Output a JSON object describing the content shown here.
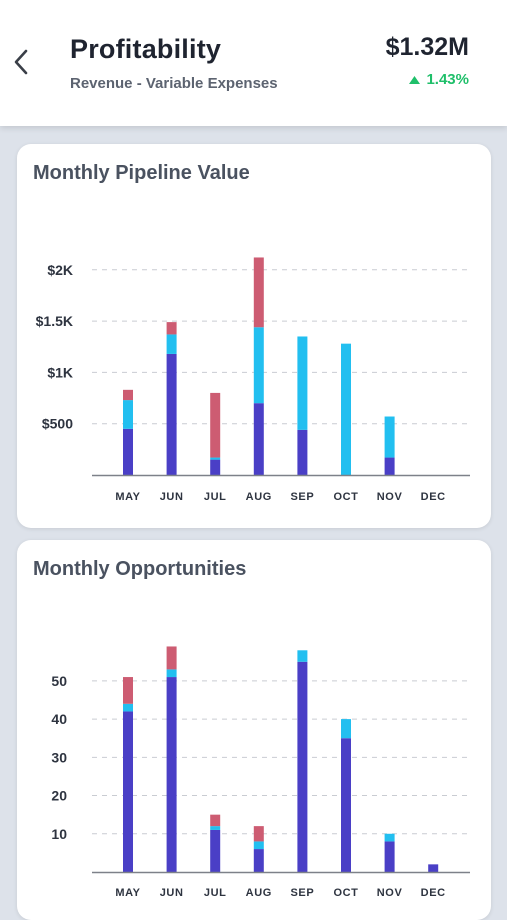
{
  "header": {
    "title": "Profitability",
    "subtitle": "Revenue - Variable Expenses",
    "amount": "$1.32M",
    "change": "1.43%"
  },
  "colors": {
    "series_a": "#4a3fc6",
    "series_b": "#22bff0",
    "series_c": "#cd5c72",
    "positive": "#1fbf6a"
  },
  "icons": {
    "back": "chevron-left-icon",
    "trend": "triangle-up-icon"
  },
  "chart_data": [
    {
      "type": "bar",
      "stacked": true,
      "title": "Monthly Pipeline Value",
      "categories": [
        "MAY",
        "JUN",
        "JUL",
        "AUG",
        "SEP",
        "OCT",
        "NOV",
        "DEC"
      ],
      "series": [
        {
          "values": [
            450,
            1180,
            150,
            700,
            440,
            0,
            170,
            0
          ]
        },
        {
          "values": [
            280,
            190,
            20,
            740,
            910,
            1280,
            400,
            0
          ]
        },
        {
          "values": [
            100,
            120,
            630,
            680,
            0,
            0,
            0,
            0
          ]
        }
      ],
      "yticks": [
        500,
        1000,
        1500,
        2000
      ],
      "yticklabels": [
        "$500",
        "$1K",
        "$1.5K",
        "$2K"
      ],
      "ylim": [
        0,
        2300
      ],
      "grid": true
    },
    {
      "type": "bar",
      "stacked": true,
      "title": "Monthly Opportunities",
      "categories": [
        "MAY",
        "JUN",
        "JUL",
        "AUG",
        "SEP",
        "OCT",
        "NOV",
        "DEC"
      ],
      "series": [
        {
          "values": [
            42,
            51,
            11,
            6,
            55,
            35,
            8,
            2
          ]
        },
        {
          "values": [
            2,
            2,
            1,
            2,
            3,
            5,
            2,
            0
          ]
        },
        {
          "values": [
            7,
            6,
            3,
            4,
            0,
            0,
            0,
            0
          ]
        }
      ],
      "yticks": [
        10,
        20,
        30,
        40,
        50
      ],
      "yticklabels": [
        "10",
        "20",
        "30",
        "40",
        "50"
      ],
      "ylim": [
        0,
        62
      ],
      "grid": true
    }
  ]
}
